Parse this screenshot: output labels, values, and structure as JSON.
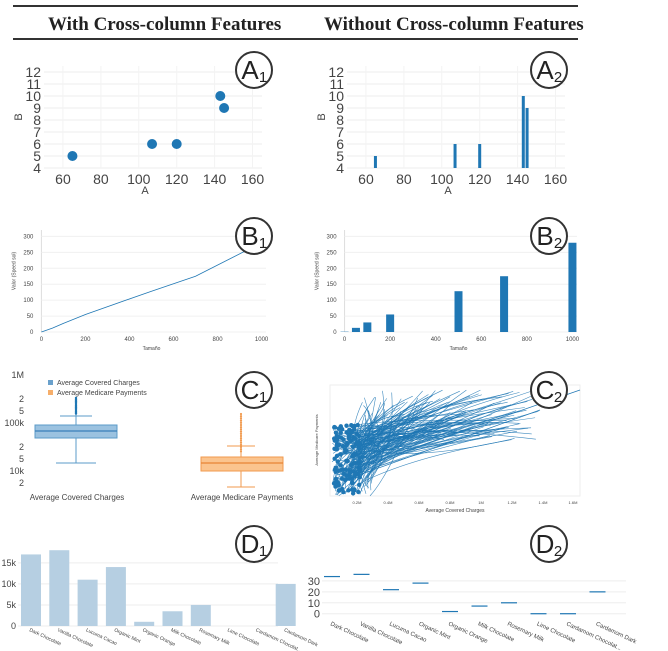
{
  "headers": {
    "left": "With Cross-column Features",
    "right": "Without Cross-column Features"
  },
  "badges": [
    {
      "letter": "A",
      "sub": "1"
    },
    {
      "letter": "A",
      "sub": "2"
    },
    {
      "letter": "B",
      "sub": "1"
    },
    {
      "letter": "B",
      "sub": "2"
    },
    {
      "letter": "C",
      "sub": "1"
    },
    {
      "letter": "C",
      "sub": "2"
    },
    {
      "letter": "D",
      "sub": "1"
    },
    {
      "letter": "D",
      "sub": "2"
    }
  ],
  "chart_data": [
    {
      "id": "A1",
      "type": "scatter",
      "xlabel": "A",
      "ylabel": "B",
      "xlim": [
        50,
        165
      ],
      "ylim": [
        4,
        12.5
      ],
      "xticks": [
        60,
        80,
        100,
        120,
        140,
        160
      ],
      "yticks": [
        4,
        5,
        6,
        7,
        8,
        9,
        10,
        11,
        12
      ],
      "points": [
        [
          65,
          5
        ],
        [
          107,
          6
        ],
        [
          120,
          6
        ],
        [
          143,
          10
        ],
        [
          145,
          9
        ]
      ]
    },
    {
      "id": "A2",
      "type": "bar",
      "xlabel": "A",
      "ylabel": "B",
      "xlim": [
        50,
        165
      ],
      "ylim": [
        4,
        12.5
      ],
      "xticks": [
        60,
        80,
        100,
        120,
        140,
        160
      ],
      "yticks": [
        4,
        5,
        6,
        7,
        8,
        9,
        10,
        11,
        12
      ],
      "bars": [
        [
          65,
          5
        ],
        [
          107,
          6
        ],
        [
          120,
          6
        ],
        [
          143,
          10
        ],
        [
          145,
          9
        ]
      ]
    },
    {
      "id": "B1",
      "type": "line",
      "xlabel": "Tamaño",
      "ylabel": "Valor (Speed sol)",
      "xlim": [
        -20,
        1020
      ],
      "ylim": [
        0,
        320
      ],
      "xticks": [
        0,
        200,
        400,
        600,
        800,
        1000
      ],
      "yticks": [
        0,
        50,
        100,
        150,
        200,
        250,
        300
      ],
      "points": [
        [
          0,
          0
        ],
        [
          50,
          12
        ],
        [
          100,
          27
        ],
        [
          200,
          55
        ],
        [
          500,
          128
        ],
        [
          700,
          175
        ],
        [
          1000,
          280
        ]
      ]
    },
    {
      "id": "B2",
      "type": "bar",
      "xlabel": "Tamaño",
      "ylabel": "Valor (Speed sol)",
      "xlim": [
        -20,
        1020
      ],
      "ylim": [
        0,
        320
      ],
      "xticks": [
        0,
        200,
        400,
        600,
        800,
        1000
      ],
      "yticks": [
        0,
        50,
        100,
        150,
        200,
        250,
        300
      ],
      "bars": [
        [
          0,
          1
        ],
        [
          50,
          13
        ],
        [
          100,
          30
        ],
        [
          200,
          55
        ],
        [
          500,
          128
        ],
        [
          700,
          175
        ],
        [
          1000,
          280
        ]
      ]
    },
    {
      "id": "C1",
      "type": "box",
      "yticklabels": [
        "1M",
        "2",
        "5",
        "100k",
        "2",
        "5",
        "10k",
        "2"
      ],
      "legend": [
        "Average Covered Charges",
        "Average Medicare Payments"
      ],
      "categories": [
        "Average Covered Charges",
        "Average Medicare Payments"
      ]
    },
    {
      "id": "C2",
      "type": "line",
      "xlabel": "Average Covered Charges",
      "ylabel": "Average Medicare Payments",
      "xticks": [
        "0.2M",
        "0.4M",
        "0.6M",
        "0.8M",
        "1M",
        "1.2M",
        "1.4M",
        "1.6M"
      ]
    },
    {
      "id": "D1",
      "type": "bar",
      "categories": [
        "Dark Chocolate",
        "Vanilla Chocolate",
        "Lucuma Cacao",
        "Organic Mint",
        "Organic Orange",
        "Milk Chocolate",
        "Rosemary Milk",
        "Lime Chocolate",
        "Cardamom Chocolat...",
        "Cardamom Dark"
      ],
      "values": [
        17000,
        18000,
        11000,
        14000,
        1000,
        3500,
        5000,
        0,
        0,
        10000
      ],
      "ylim": [
        0,
        19000
      ],
      "yticks": [
        0,
        5000,
        10000,
        15000
      ],
      "yticklabels": [
        "0",
        "5k",
        "10k",
        "15k"
      ]
    },
    {
      "id": "D2",
      "type": "tick",
      "categories": [
        "Dark Chocolate",
        "Vanilla Chocolate",
        "Lucuma Cacao",
        "Organic Mint",
        "Organic Orange",
        "Milk Chocolate",
        "Rosemary Milk",
        "Lime Chocolate",
        "Cardamom Chocolat...",
        "Cardamom Dark"
      ],
      "values": [
        34,
        36,
        22,
        28,
        2,
        7,
        10,
        0,
        0,
        20
      ],
      "ylim": [
        -3,
        40
      ],
      "yticks": [
        0,
        10,
        20,
        30
      ]
    }
  ]
}
